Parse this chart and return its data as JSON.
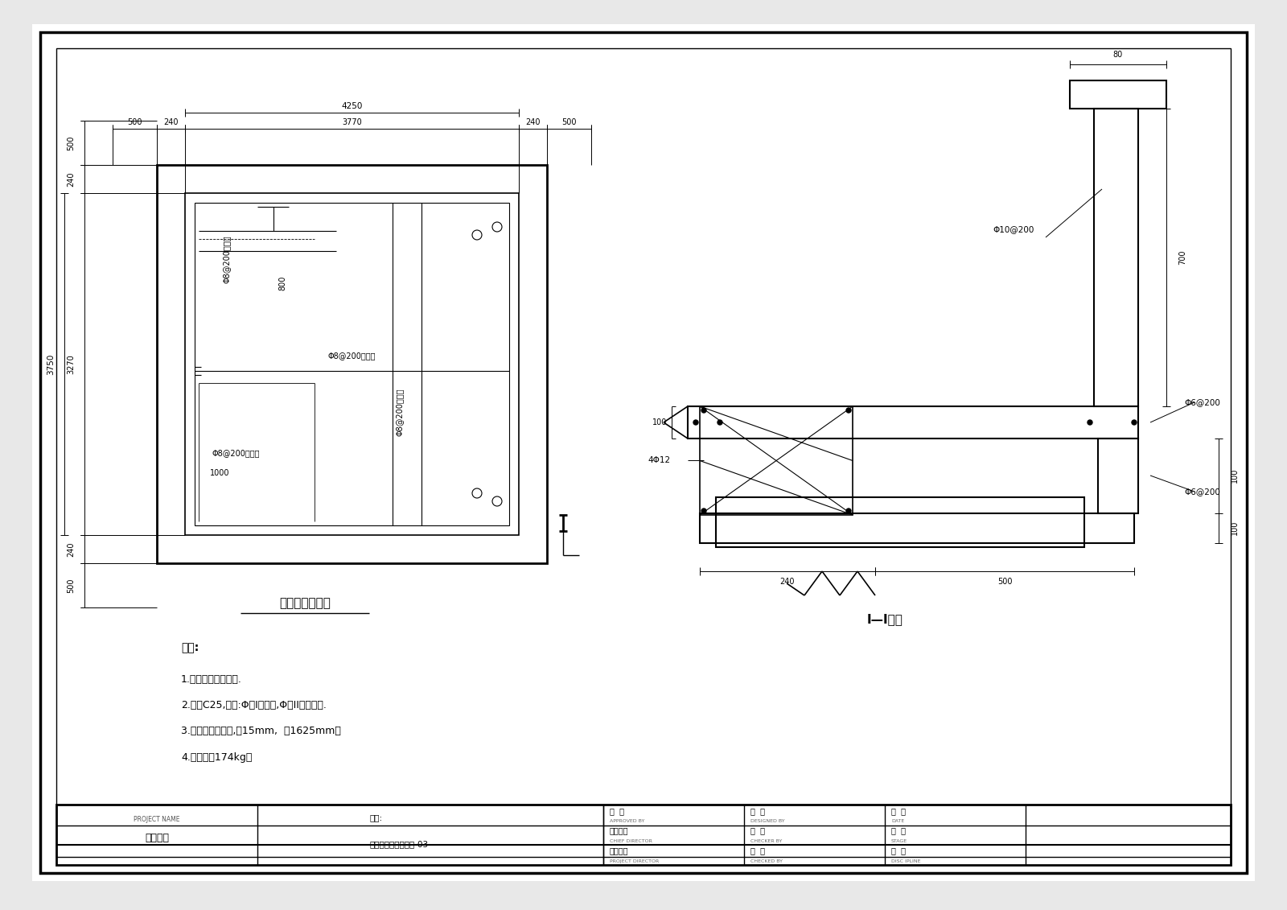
{
  "bg_color": "#e8e8e8",
  "paper_color": "#ffffff",
  "line_color": "#000000",
  "left_plan": {
    "caption": "泵房顶板配筋图",
    "dim_top_total": "4250",
    "dim_top_inner": "3770",
    "dim_top_240_l": "240",
    "dim_top_240_r": "240",
    "dim_top_500_l": "500",
    "dim_top_500_r": "500",
    "dim_left_total": "3750",
    "dim_left_inner": "3270",
    "dim_left_240_t": "240",
    "dim_left_240_b": "240",
    "dim_left_500_t": "500",
    "dim_left_500_b": "500",
    "rebar_top_vert": "Φ8@200（上）",
    "rebar_mid_horiz": "Φ8@200（下）",
    "rebar_bot_left": "Φ8@200（上）",
    "rebar_bot_vert": "Φ8@200（下）",
    "dim_800": "800",
    "dim_1000": "1000"
  },
  "right_section": {
    "caption": "I—I剖面",
    "dim_80": "80",
    "dim_700": "700",
    "dim_100_left": "100",
    "dim_100_r1": "100",
    "dim_100_r2": "100",
    "dim_240": "240",
    "dim_500": "500",
    "rebar_phi10_200": "Φ10@200",
    "rebar_phi6_200_h": "Φ6@200",
    "rebar_phi6_200_v": "Φ6@200",
    "rebar_4phi12": "4Φ12"
  },
  "notes": [
    "说明:",
    "1.尺寸单位以毫米计.",
    "2.混用C25,锂筋:Φ为I级圆锂,Φ为II级螺纹锂.",
    "3.锂筋的砍保护层,板15mm,  栀1625mm。",
    "4.锂筋合计174kg。"
  ],
  "title_block": {
    "project_name": "项目名称",
    "project_name_en": "PROJECT NAME",
    "drawing_title_label": "图名:",
    "drawing_name": "土地整理泵房设计图-03",
    "label_proj_dir": "项目负责",
    "label_proj_dir_en": "PROJECT DIRECTOR",
    "label_chief_dir": "专业负责",
    "label_chief_dir_en": "CHIEF DIRECTOR",
    "label_approved": "审  定",
    "label_approved_en": "APPROVED BY",
    "label_checked": "审  核",
    "label_checked_en": "CHECKED BY",
    "label_verified": "校  对",
    "label_verified_en": "CHECKER BY",
    "label_designed": "设  计",
    "label_designed_en": "DESIGNED BY",
    "label_disc": "专  业",
    "label_disc_en": "DISC IPLINE",
    "label_stage": "阶  段",
    "label_stage_en": "STAGE",
    "label_version": "版  次",
    "label_version_en": "DATE"
  }
}
